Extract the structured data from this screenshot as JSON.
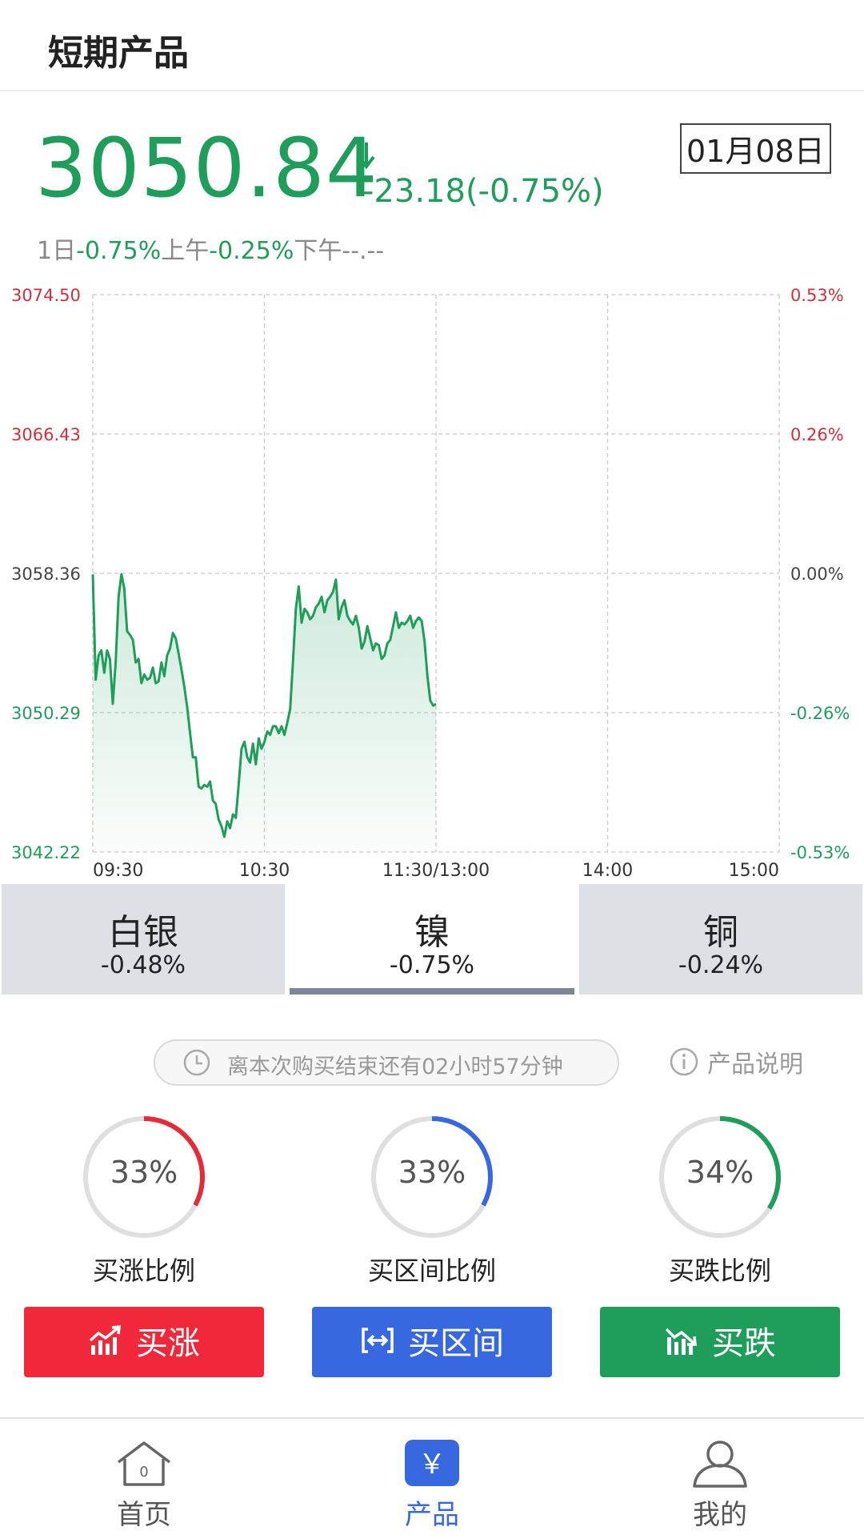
{
  "header": {
    "title": "短期产品"
  },
  "quote": {
    "price": "3050.84",
    "change": "-23.18(-0.75%)",
    "date": "01月08日",
    "subline": [
      {
        "text": "1日",
        "color": "gray"
      },
      {
        "text": "-0.75%",
        "color": "green"
      },
      {
        "text": "上午",
        "color": "gray"
      },
      {
        "text": "-0.25%",
        "color": "green"
      },
      {
        "text": "下午--.--",
        "color": "gray"
      }
    ]
  },
  "chart_data": {
    "type": "line",
    "x_ticks": [
      "09:30",
      "10:30",
      "11:30/13:00",
      "14:00",
      "15:00"
    ],
    "y_left_ticks": [
      "3074.50",
      "3066.43",
      "3058.36",
      "3050.29",
      "3042.22"
    ],
    "y_right_ticks": [
      "0.53%",
      "0.26%",
      "0.00%",
      "-0.26%",
      "-0.53%"
    ],
    "ylim": [
      3042.22,
      3074.5
    ],
    "x_range_minutes": [
      0,
      240
    ],
    "grid": true,
    "colors": {
      "up": "#d32f3a",
      "neutral": "#444444",
      "down": "#1e9e5a",
      "line": "#1e9e5a"
    },
    "series": [
      {
        "x": [
          0,
          1,
          2,
          3,
          4,
          5,
          6,
          7,
          8,
          9,
          10,
          11,
          12,
          13,
          14,
          15,
          16,
          17,
          18,
          19,
          20,
          21,
          22,
          23,
          24,
          25,
          26,
          27,
          28,
          29,
          30,
          31,
          32,
          33,
          34,
          35,
          36,
          37,
          38,
          39,
          40,
          41,
          42,
          43,
          44,
          45,
          46,
          47,
          48,
          49,
          50,
          51,
          52,
          53,
          54,
          55,
          56,
          57,
          58,
          59,
          60,
          61,
          62,
          63,
          64,
          65,
          66,
          67,
          68,
          69,
          70,
          71,
          72,
          73,
          74,
          75,
          76,
          77,
          78,
          79,
          80,
          81,
          82,
          83,
          84,
          85,
          86,
          87,
          88,
          89,
          90,
          91,
          92,
          93,
          94,
          95,
          96,
          97,
          98,
          99,
          100,
          101,
          102,
          103,
          104,
          105,
          106,
          107,
          108,
          109,
          110,
          111,
          112,
          113,
          114,
          115,
          116,
          117,
          118,
          119,
          120
        ],
        "y": [
          3058.3,
          3052.2,
          3053.6,
          3053.9,
          3052.6,
          3053.9,
          3053.4,
          3050.8,
          3053.2,
          3057.0,
          3058.3,
          3057.5,
          3055.0,
          3054.8,
          3054.5,
          3053.2,
          3053.4,
          3052.0,
          3052.5,
          3052.2,
          3052.3,
          3052.9,
          3052.0,
          3052.1,
          3053.2,
          3052.4,
          3053.6,
          3054.0,
          3054.9,
          3054.6,
          3053.7,
          3052.8,
          3051.8,
          3050.6,
          3049.1,
          3047.7,
          3047.7,
          3046.0,
          3045.9,
          3046.1,
          3046.0,
          3046.3,
          3045.2,
          3045.0,
          3044.1,
          3043.7,
          3043.1,
          3044.0,
          3043.6,
          3044.4,
          3044.2,
          3046.1,
          3048.2,
          3048.6,
          3047.7,
          3047.4,
          3048.5,
          3047.3,
          3048.8,
          3048.2,
          3048.6,
          3049.2,
          3049.0,
          3049.5,
          3049.5,
          3049.1,
          3049.5,
          3049.0,
          3049.7,
          3050.5,
          3053.3,
          3056.3,
          3057.6,
          3055.5,
          3056.3,
          3056.1,
          3055.7,
          3055.9,
          3056.4,
          3056.6,
          3057.0,
          3056.1,
          3056.8,
          3057.0,
          3057.3,
          3058.0,
          3055.7,
          3056.4,
          3056.8,
          3055.9,
          3055.6,
          3055.4,
          3055.9,
          3055.2,
          3054.0,
          3054.4,
          3055.3,
          3054.6,
          3053.9,
          3054.3,
          3054.2,
          3053.4,
          3053.6,
          3054.3,
          3054.5,
          3055.3,
          3056.1,
          3055.2,
          3055.5,
          3055.4,
          3055.6,
          3055.9,
          3055.2,
          3055.6,
          3055.8,
          3055.6,
          3054.4,
          3052.4,
          3051.0,
          3050.7,
          3050.8
        ]
      }
    ]
  },
  "tabs": [
    {
      "name": "白银",
      "change": "-0.48%"
    },
    {
      "name": "镍",
      "change": "-0.75%"
    },
    {
      "name": "铜",
      "change": "-0.24%"
    }
  ],
  "countdown": {
    "text": "离本次购买结束还有02小时57分钟",
    "icon": "clock-icon"
  },
  "info": {
    "text": "产品说明",
    "icon": "info-icon"
  },
  "ratios": [
    {
      "value": "33%",
      "fraction": 0.33,
      "label": "买涨比例",
      "color": "#e52b38"
    },
    {
      "value": "33%",
      "fraction": 0.33,
      "label": "买区间比例",
      "color": "#3868e0"
    },
    {
      "value": "34%",
      "fraction": 0.34,
      "label": "买跌比例",
      "color": "#1e9e5a"
    }
  ],
  "buttons": {
    "up": "买涨",
    "range": "买区间",
    "down": "买跌"
  },
  "nav": [
    {
      "label": "首页",
      "icon": "home-icon",
      "badge": "0"
    },
    {
      "label": "产品",
      "icon": "product-yuan-icon",
      "glyph": "￥"
    },
    {
      "label": "我的",
      "icon": "user-icon"
    }
  ]
}
